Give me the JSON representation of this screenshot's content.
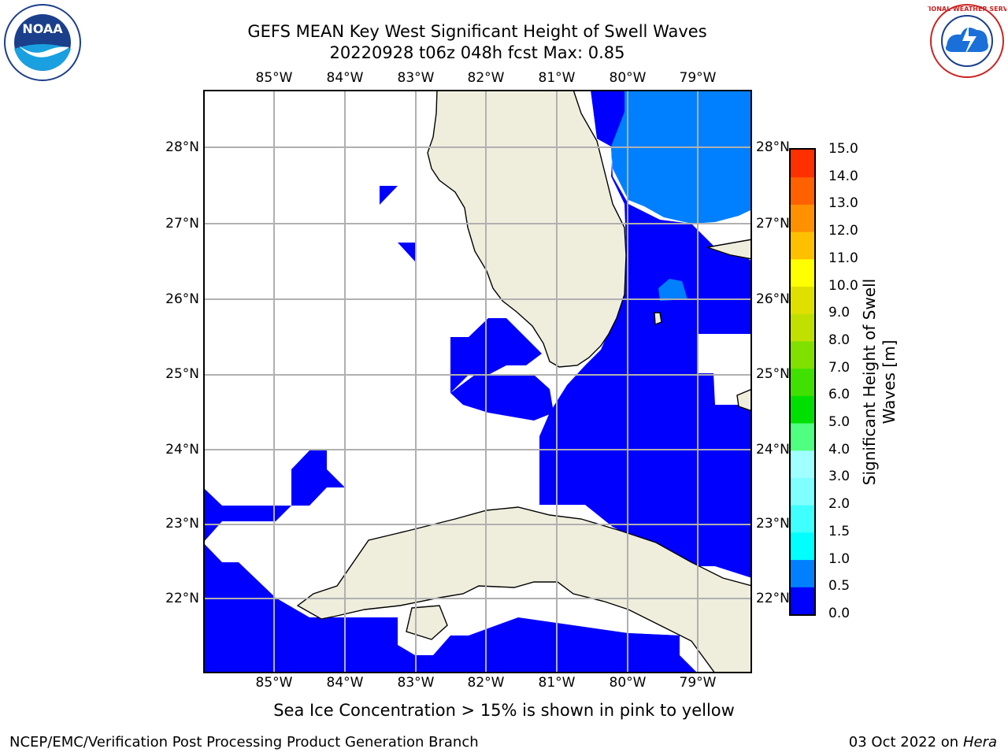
{
  "title": {
    "line1": "GEFS MEAN Key West Significant Height of Swell Waves",
    "line2": "20220928 t06z 048h fcst   Max: 0.85"
  },
  "map": {
    "lon_ticks": [
      "85°W",
      "84°W",
      "83°W",
      "82°W",
      "81°W",
      "80°W",
      "79°W"
    ],
    "lat_ticks": [
      "28°N",
      "27°N",
      "26°N",
      "25°N",
      "24°N",
      "23°N",
      "22°N"
    ],
    "land_color": "#efeedd",
    "field_colors": {
      "0.0-0.5": "#0000ff",
      "0.5-1.0": "#0080ff"
    }
  },
  "colorbar": {
    "label": "Significant Height of Swell Waves [m]",
    "ticks": [
      "0.0",
      "0.5",
      "1.0",
      "1.5",
      "2.0",
      "3.0",
      "4.0",
      "5.0",
      "6.0",
      "7.0",
      "8.0",
      "9.0",
      "10.0",
      "11.0",
      "12.0",
      "13.0",
      "14.0",
      "15.0"
    ],
    "colors": [
      "#0000ff",
      "#0080ff",
      "#00ffff",
      "#40ffff",
      "#80ffff",
      "#a0ffff",
      "#50ff80",
      "#00e000",
      "#40e000",
      "#80e000",
      "#c0e000",
      "#e0e000",
      "#ffff00",
      "#ffc000",
      "#ff9000",
      "#ff6000",
      "#ff3000",
      "#ff0000"
    ]
  },
  "note": "Sea Ice Concentration > 15% is shown in pink to yellow",
  "footer": {
    "left": "NCEP/EMC/Verification Post Processing Product Generation Branch",
    "right_date": "03 Oct 2022 on ",
    "right_host": "Hera"
  },
  "logos": {
    "noaa_text": "NOAA",
    "nws_text": "NATIONAL WEATHER SERVICE"
  }
}
